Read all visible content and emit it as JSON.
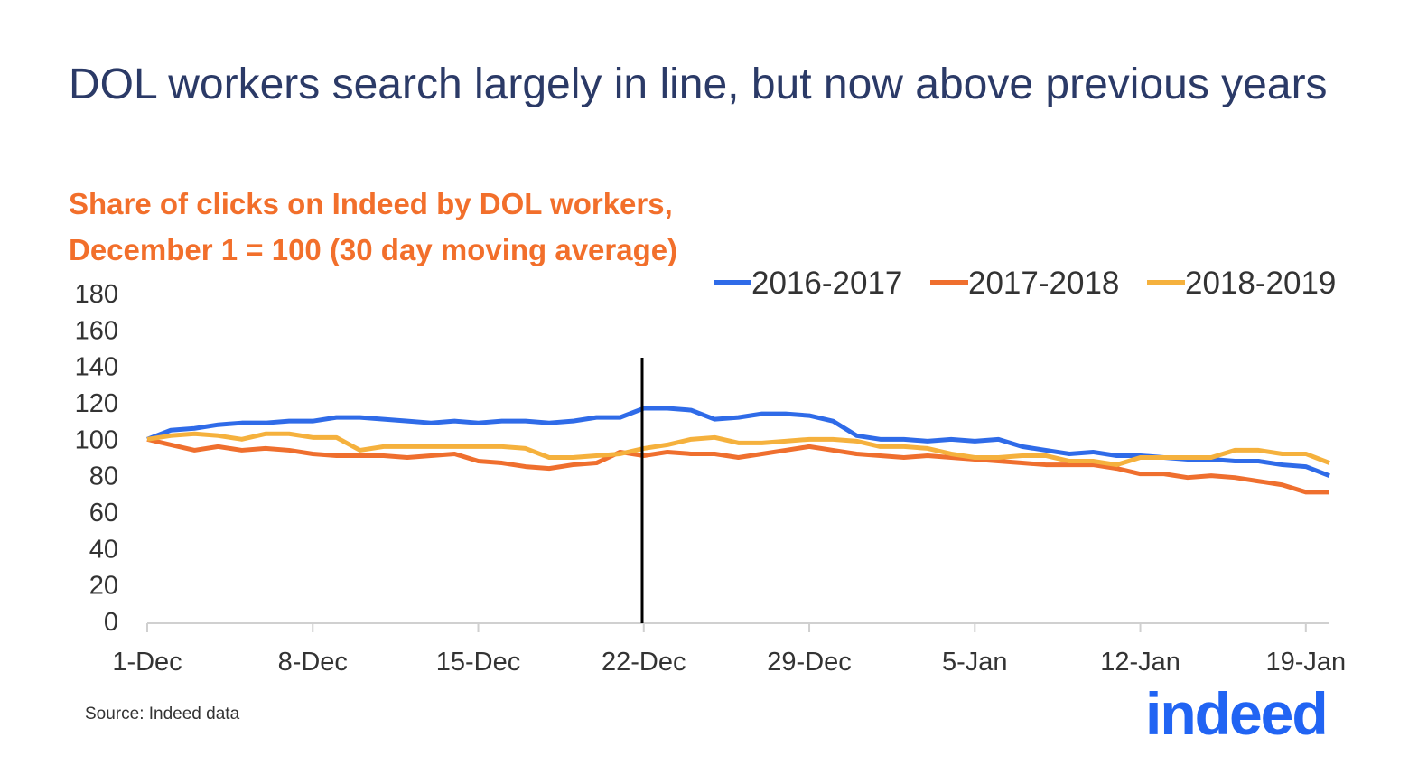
{
  "chart_data": {
    "type": "line",
    "title": "DOL workers search largely in line, but now above previous years",
    "subtitle_lines": [
      "Share of clicks on Indeed by DOL workers,",
      "December 1 = 100 (30 day moving average)"
    ],
    "xlabel": "",
    "ylabel": "",
    "ylim": [
      0,
      180
    ],
    "yticks": [
      "0",
      "20",
      "40",
      "60",
      "80",
      "100",
      "120",
      "140",
      "160",
      "180"
    ],
    "xticks": [
      "1-Dec",
      "8-Dec",
      "15-Dec",
      "22-Dec",
      "29-Dec",
      "5-Jan",
      "12-Jan",
      "19-Jan"
    ],
    "x_start": "1-Dec",
    "x_end": "20-Jan",
    "grid": false,
    "legend": "top-right",
    "vertical_marker": "22-Dec",
    "series": [
      {
        "name": "2016-2017",
        "color": "#2f6be8",
        "values": [
          100,
          105,
          106,
          108,
          109,
          109,
          110,
          110,
          112,
          112,
          111,
          110,
          109,
          110,
          109,
          110,
          110,
          109,
          110,
          112,
          112,
          117,
          117,
          116,
          111,
          112,
          114,
          114,
          113,
          110,
          102,
          100,
          100,
          99,
          100,
          99,
          100,
          96,
          94,
          92,
          93,
          91,
          91,
          90,
          89,
          89,
          88,
          88,
          86,
          85,
          80
        ]
      },
      {
        "name": "2017-2018",
        "color": "#ef6f2e",
        "values": [
          100,
          97,
          94,
          96,
          94,
          95,
          94,
          92,
          91,
          91,
          91,
          90,
          91,
          92,
          88,
          87,
          85,
          84,
          86,
          87,
          93,
          91,
          93,
          92,
          92,
          90,
          92,
          94,
          96,
          94,
          92,
          91,
          90,
          91,
          90,
          89,
          88,
          87,
          86,
          86,
          86,
          84,
          81,
          81,
          79,
          80,
          79,
          77,
          75,
          71,
          71
        ]
      },
      {
        "name": "2018-2019",
        "color": "#f5b13d",
        "values": [
          100,
          102,
          103,
          102,
          100,
          103,
          103,
          101,
          101,
          94,
          96,
          96,
          96,
          96,
          96,
          96,
          95,
          90,
          90,
          91,
          92,
          95,
          97,
          100,
          101,
          98,
          98,
          99,
          100,
          100,
          99,
          96,
          96,
          95,
          92,
          90,
          90,
          91,
          91,
          88,
          88,
          86,
          90,
          90,
          90,
          90,
          94,
          94,
          92,
          92,
          87
        ]
      }
    ]
  },
  "source": "Source: Indeed data",
  "logo_text": "indeed"
}
